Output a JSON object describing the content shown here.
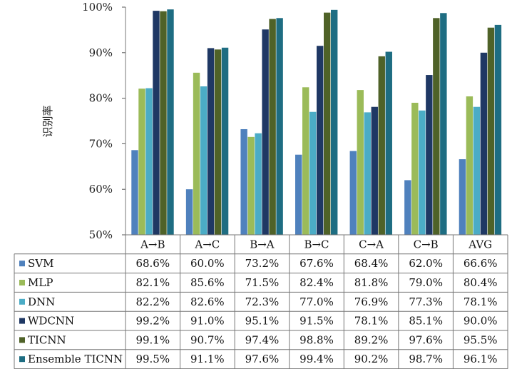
{
  "chart_data": {
    "type": "bar",
    "ylabel": "识别率",
    "ylim": [
      50,
      100
    ],
    "yticks": [
      "50%",
      "60%",
      "70%",
      "80%",
      "90%",
      "100%"
    ],
    "categories": [
      "A→B",
      "A→C",
      "B→A",
      "B→C",
      "C→A",
      "C→B",
      "AVG"
    ],
    "grid": false,
    "legend": "data-table-below",
    "series": [
      {
        "name": "SVM",
        "color": "#4f81bd",
        "values": [
          68.6,
          60.0,
          73.2,
          67.6,
          68.4,
          62.0,
          66.6
        ],
        "labels": [
          "68.6%",
          "60.0%",
          "73.2%",
          "67.6%",
          "68.4%",
          "62.0%",
          "66.6%"
        ]
      },
      {
        "name": "MLP",
        "color": "#9bbb59",
        "values": [
          82.1,
          85.6,
          71.5,
          82.4,
          81.8,
          79.0,
          80.4
        ],
        "labels": [
          "82.1%",
          "85.6%",
          "71.5%",
          "82.4%",
          "81.8%",
          "79.0%",
          "80.4%"
        ]
      },
      {
        "name": "DNN",
        "color": "#4bacc6",
        "values": [
          82.2,
          82.6,
          72.3,
          77.0,
          76.9,
          77.3,
          78.1
        ],
        "labels": [
          "82.2%",
          "82.6%",
          "72.3%",
          "77.0%",
          "76.9%",
          "77.3%",
          "78.1%"
        ]
      },
      {
        "name": "WDCNN",
        "color": "#1f3864",
        "values": [
          99.2,
          91.0,
          95.1,
          91.5,
          78.1,
          85.1,
          90.0
        ],
        "labels": [
          "99.2%",
          "91.0%",
          "95.1%",
          "91.5%",
          "78.1%",
          "85.1%",
          "90.0%"
        ]
      },
      {
        "name": "TICNN",
        "color": "#4f6228",
        "values": [
          99.1,
          90.7,
          97.4,
          98.8,
          89.2,
          97.6,
          95.5
        ],
        "labels": [
          "99.1%",
          "90.7%",
          "97.4%",
          "98.8%",
          "89.2%",
          "97.6%",
          "95.5%"
        ]
      },
      {
        "name": "Ensemble TICNN",
        "color": "#1e6d82",
        "values": [
          99.5,
          91.1,
          97.6,
          99.4,
          90.2,
          98.7,
          96.1
        ],
        "labels": [
          "99.5%",
          "91.1%",
          "97.6%",
          "99.4%",
          "90.2%",
          "98.7%",
          "96.1%"
        ]
      }
    ]
  }
}
